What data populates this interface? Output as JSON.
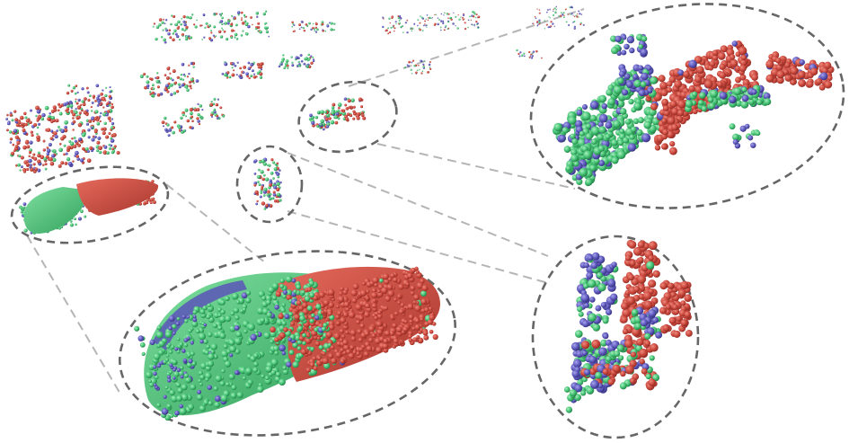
{
  "figure": {
    "description_colors": {
      "red": "#c8453a",
      "green": "#3fbf6f",
      "blue": "#5a55b8",
      "ring": "#666666",
      "connector": "#b5b5b5"
    },
    "insets": [
      {
        "name": "top-right-zoom-inset"
      },
      {
        "name": "bottom-right-zoom-inset"
      },
      {
        "name": "bottom-center-zoom-inset"
      }
    ]
  }
}
